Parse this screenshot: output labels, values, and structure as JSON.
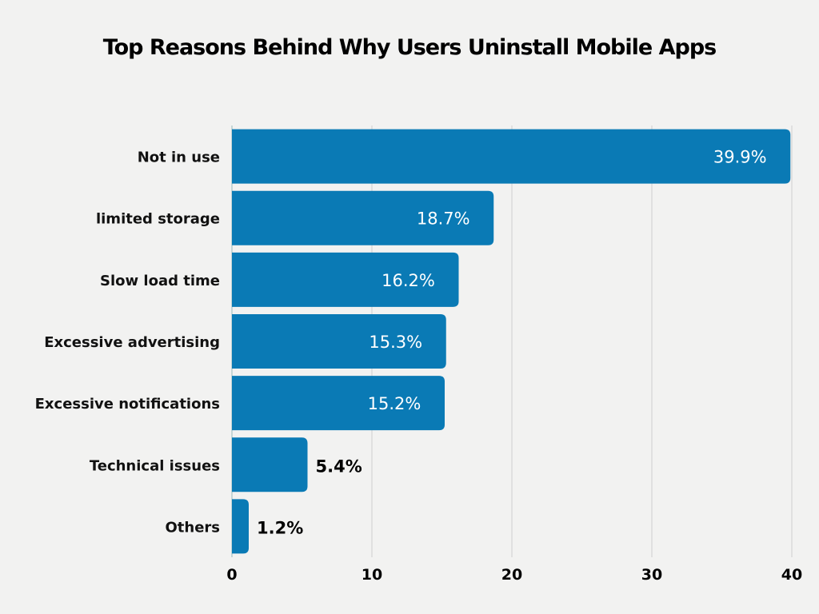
{
  "chart_data": {
    "type": "bar",
    "orientation": "horizontal",
    "title": "Top Reasons Behind Why Users Uninstall Mobile Apps",
    "categories": [
      "Not in use",
      "limited storage",
      "Slow load time",
      "Excessive advertising",
      "Excessive notifications",
      "Technical issues",
      "Others"
    ],
    "values": [
      39.9,
      18.7,
      16.2,
      15.3,
      15.2,
      5.4,
      1.2
    ],
    "data_labels": [
      "39.9%",
      "18.7%",
      "16.2%",
      "15.3%",
      "15.2%",
      "5.4%",
      "1.2%"
    ],
    "xlabel": "",
    "ylabel": "",
    "xlim": [
      0,
      40
    ],
    "xticks": [
      "0",
      "10",
      "20",
      "30",
      "40"
    ],
    "grid": "vertical",
    "bar_color": "#0a7ab5",
    "background_color": "#f2f2f1"
  }
}
